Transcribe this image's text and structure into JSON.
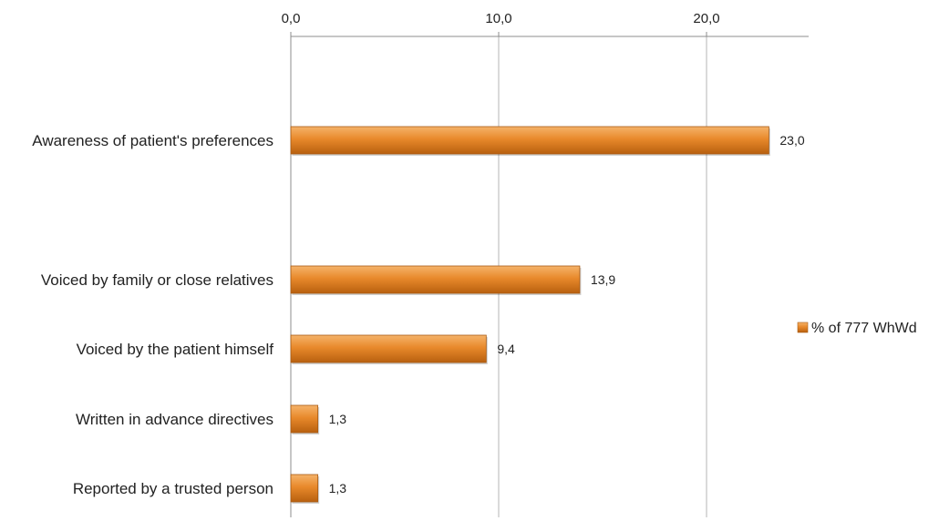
{
  "chart_data": {
    "type": "bar",
    "orientation": "horizontal",
    "categories": [
      "Awareness of patient's preferences",
      "Voiced by family or close relatives",
      "Voiced by the patient himself",
      "Written in advance directives",
      "Reported by a trusted person"
    ],
    "series": [
      {
        "name": "% of 777 WhWd",
        "values": [
          23.0,
          13.9,
          9.4,
          1.3,
          1.3
        ],
        "value_labels": [
          "23,0",
          "13,9",
          "9,4",
          "1,3",
          "1,3"
        ],
        "color": "#E8892B"
      }
    ],
    "xlim": [
      0,
      25
    ],
    "ticks": [
      0,
      10,
      20
    ],
    "tick_labels": [
      "0,0",
      "10,0",
      "20,0"
    ],
    "x_axis_position": "top",
    "grid": true,
    "legend_position": "right"
  }
}
